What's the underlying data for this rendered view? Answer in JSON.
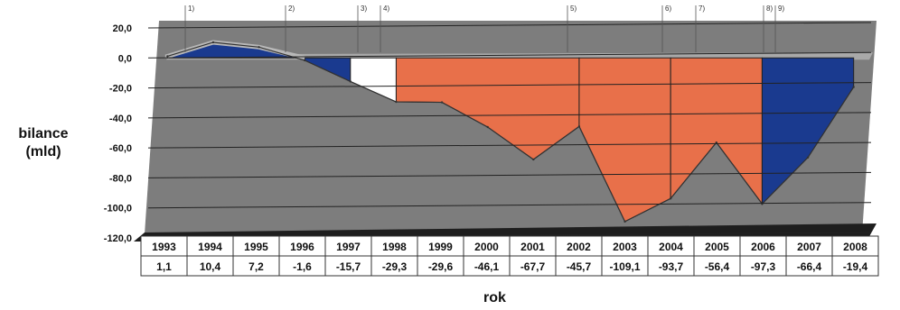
{
  "chart_data": {
    "type": "area",
    "title": "",
    "xlabel": "rok",
    "ylabel_line1": "bilance",
    "ylabel_line2": "(mld)",
    "ylim": [
      -120,
      20
    ],
    "y_ticks": [
      "20,0",
      "0,0",
      "-20,0",
      "-40,0",
      "-60,0",
      "-80,0",
      "-100,0",
      "-120,0"
    ],
    "grid": true,
    "categories": [
      "1993",
      "1994",
      "1995",
      "1996",
      "1997",
      "1998",
      "1999",
      "2000",
      "2001",
      "2002",
      "2003",
      "2004",
      "2005",
      "2006",
      "2007",
      "2008"
    ],
    "values": [
      1.1,
      10.4,
      7.2,
      -1.6,
      -15.7,
      -29.3,
      -29.6,
      -46.1,
      -67.7,
      -45.7,
      -109.1,
      -93.7,
      -56.4,
      -97.3,
      -66.4,
      -19.4
    ],
    "value_labels": [
      "1,1",
      "10,4",
      "7,2",
      "-1,6",
      "-15,7",
      "-29,3",
      "-29,6",
      "-46,1",
      "-67,7",
      "-45,7",
      "-109,1",
      "-93,7",
      "-56,4",
      "-97,3",
      "-66,4",
      "-19,4"
    ],
    "period_markers": [
      "1)",
      "2)",
      "3)",
      "4)",
      "5)",
      "6)",
      "7)",
      "8)",
      "9)"
    ],
    "colors": {
      "blue": "#1a3a8f",
      "orange": "#e8704a",
      "white": "#ffffff",
      "line_positive": "#b8b8b8",
      "plot_bg": "#7d7d7d",
      "floor": "#1e1e1e",
      "wall_top": "#a9a9a9"
    }
  }
}
